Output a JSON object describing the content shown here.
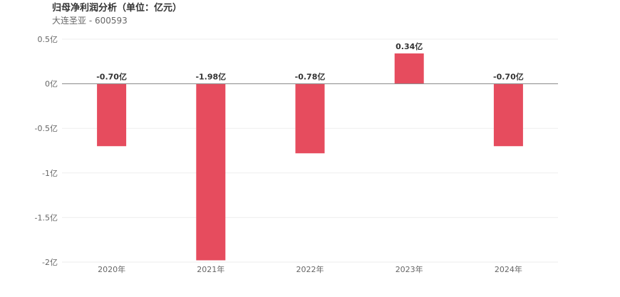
{
  "header": {
    "title": "归母净利润分析（单位：亿元）",
    "subtitle": "大连圣亚 - 600593"
  },
  "colors": {
    "bar": "#e64c5e",
    "zero_line": "#888888",
    "grid": "#eeeeee",
    "axis_text": "#666666",
    "label_text": "#333333"
  },
  "chart_data": {
    "type": "bar",
    "title": "归母净利润分析（单位：亿元）",
    "subtitle": "大连圣亚 - 600593",
    "categories": [
      "2020年",
      "2021年",
      "2022年",
      "2023年",
      "2024年"
    ],
    "values": [
      -0.7,
      -1.98,
      -0.78,
      0.34,
      -0.7
    ],
    "data_labels": [
      "-0.70亿",
      "-1.98亿",
      "-0.78亿",
      "0.34亿",
      "-0.70亿"
    ],
    "y_ticks": [
      0.5,
      0,
      -0.5,
      -1,
      -1.5,
      -2
    ],
    "y_tick_labels": [
      "0.5亿",
      "0亿",
      "-0.5亿",
      "-1亿",
      "-1.5亿",
      "-2亿"
    ],
    "ylim": [
      -2,
      0.5
    ],
    "xlabel": "",
    "ylabel": "",
    "grid": true,
    "legend": "none"
  }
}
